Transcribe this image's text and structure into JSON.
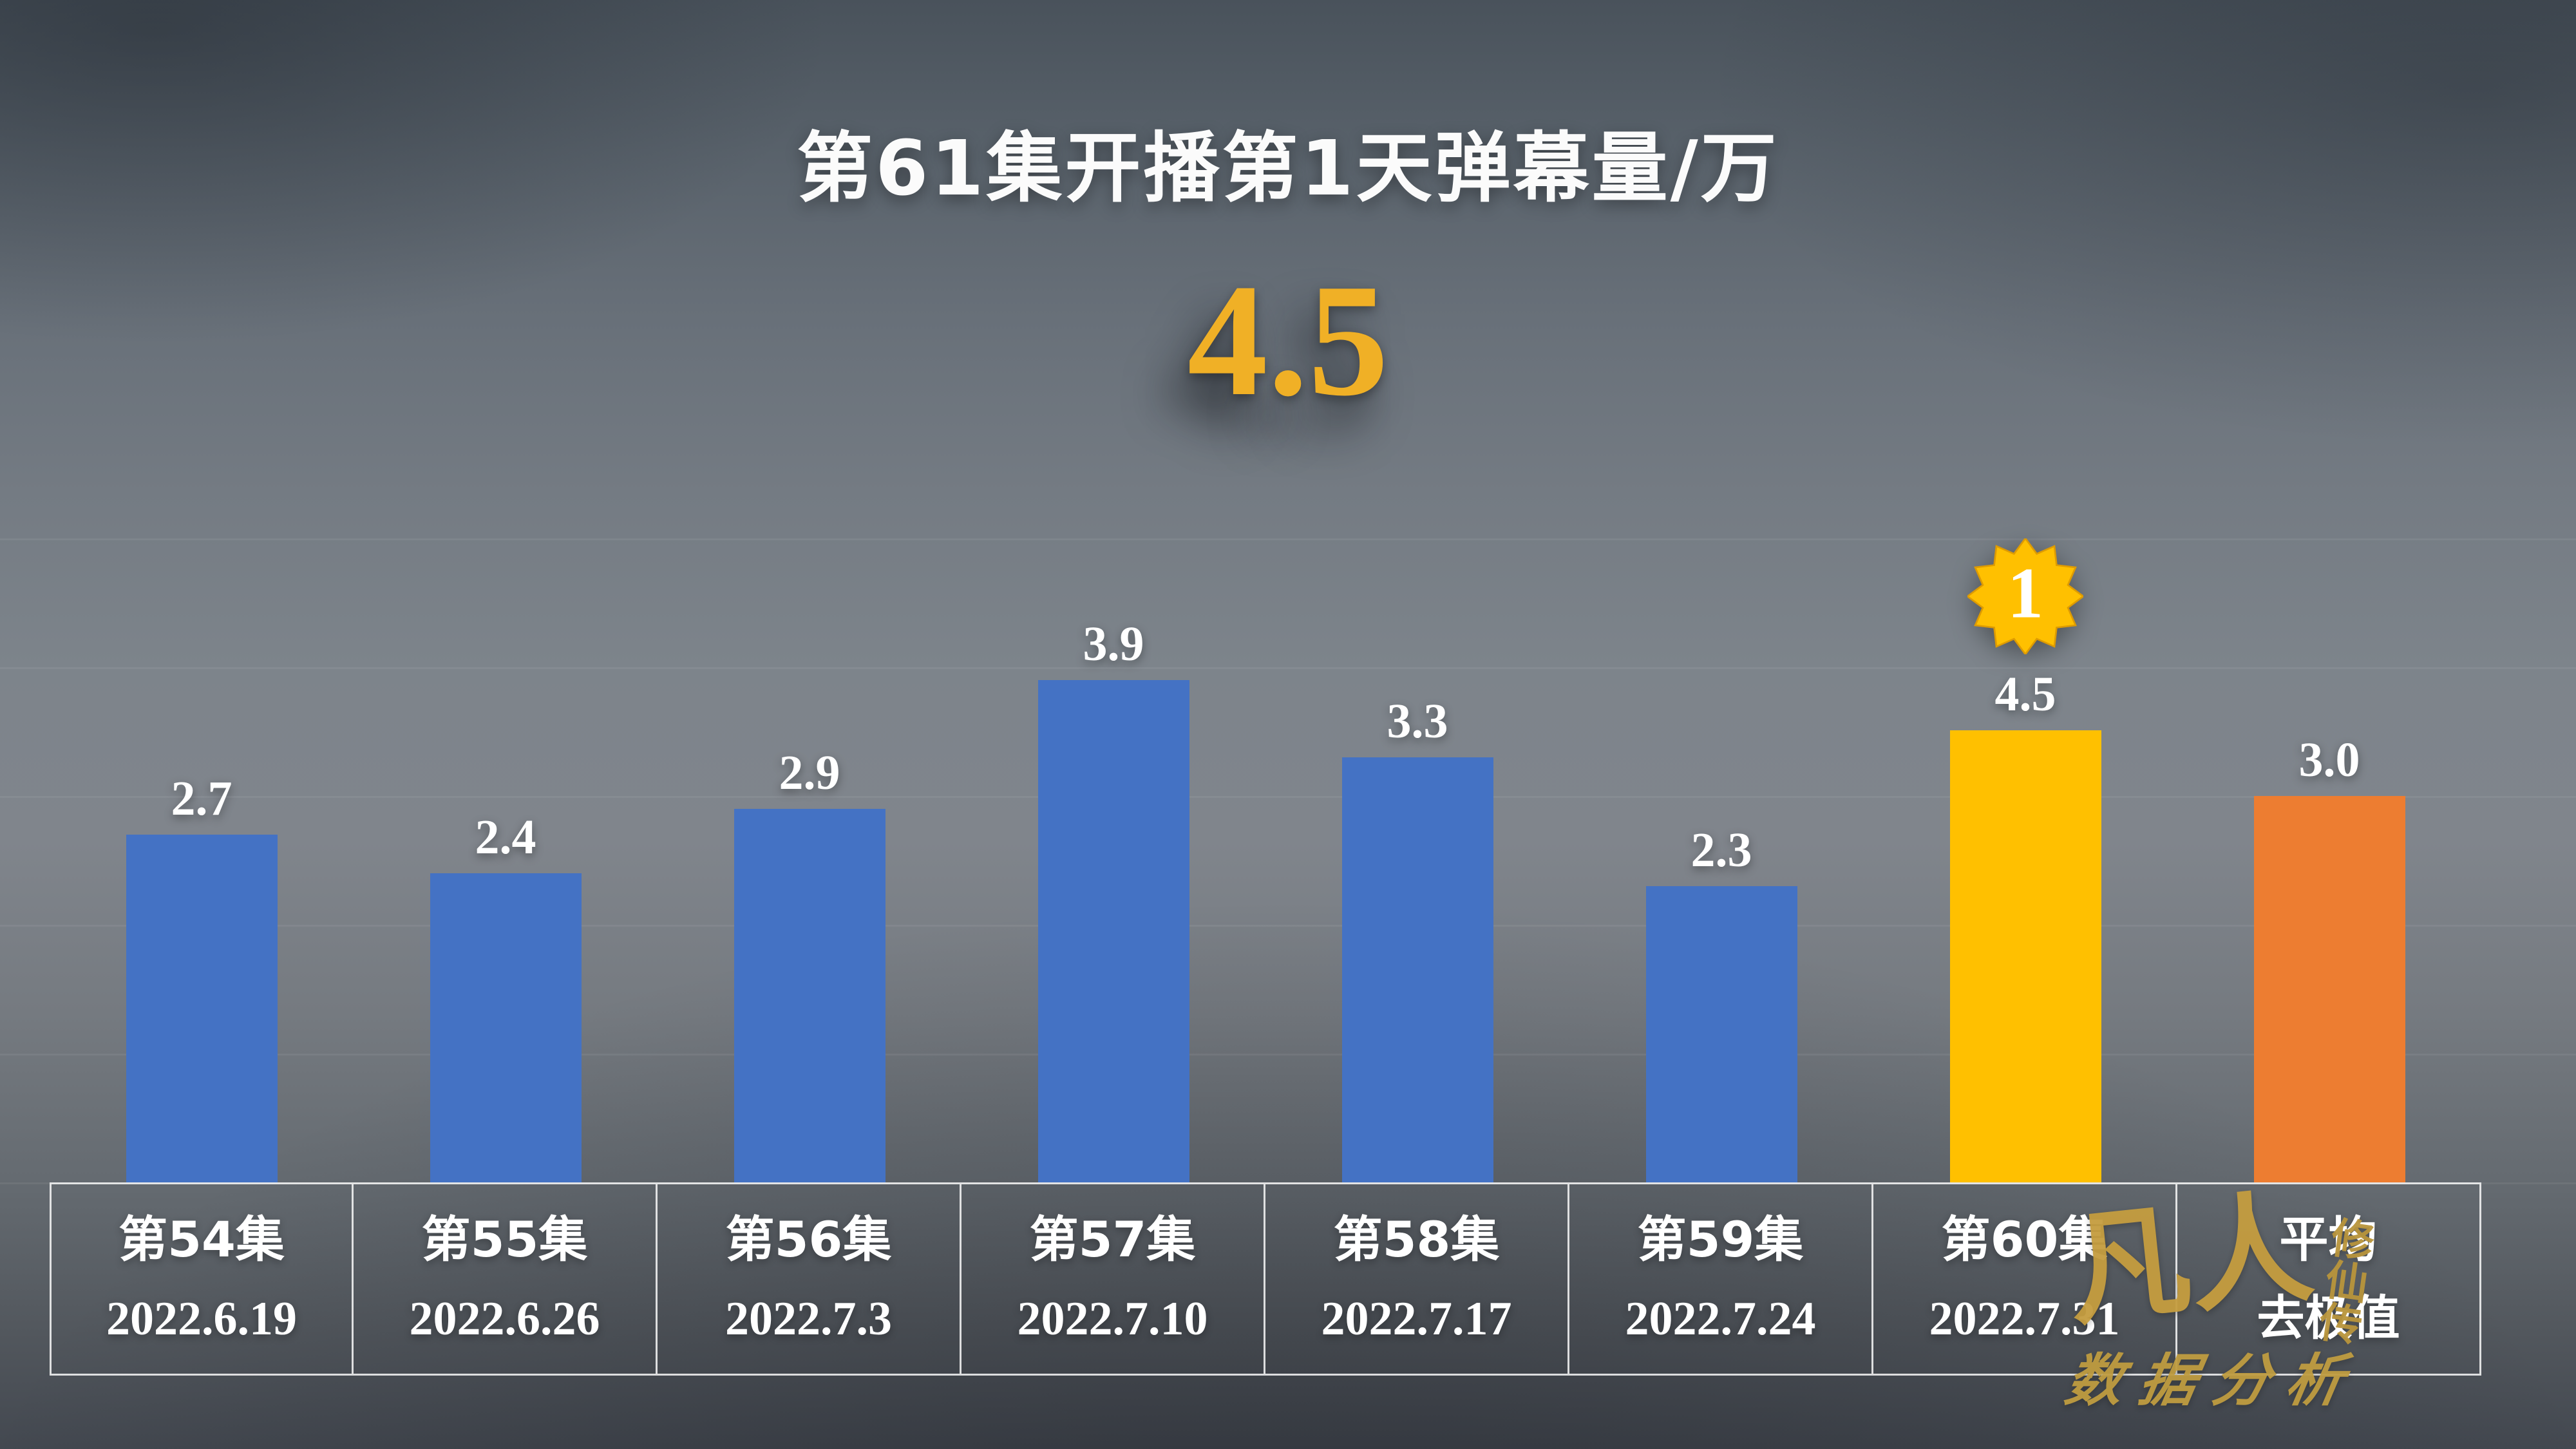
{
  "page": {
    "title": "第61集开播第1天弹幕量/万",
    "headline_value": "4.5"
  },
  "chart_data": {
    "type": "bar",
    "title": "第61集开播第1天弹幕量/万",
    "headline_value": "4.5",
    "categories": [
      "第54集",
      "第55集",
      "第56集",
      "第57集",
      "第58集",
      "第59集",
      "第60集",
      "平均"
    ],
    "dates": [
      "2022.6.19",
      "2022.6.26",
      "2022.7.3",
      "2022.7.10",
      "2022.7.17",
      "2022.7.24",
      "2022.7.31",
      "去极值"
    ],
    "values": [
      2.7,
      2.4,
      2.9,
      3.9,
      3.3,
      2.3,
      4.5,
      3.0
    ],
    "value_labels": [
      "2.7",
      "2.4",
      "2.9",
      "3.9",
      "3.3",
      "2.3",
      "4.5",
      "3.0"
    ],
    "bar_colors": [
      "#4472c4",
      "#4472c4",
      "#4472c4",
      "#4472c4",
      "#4472c4",
      "#4472c4",
      "#ffc000",
      "#ed7d31"
    ],
    "rank_badge": {
      "label": "1",
      "column_index": 6
    },
    "xlabel": "",
    "ylabel": "",
    "ylim": [
      0,
      5
    ],
    "grid": "faint horizontal",
    "legend": "none"
  },
  "watermark": {
    "brand_main": "凡人",
    "brand_sub": "修仙传",
    "caption": "数据分析"
  },
  "colors": {
    "bar_blue": "#4472c4",
    "bar_gold": "#ffc000",
    "bar_orange": "#ed7d31",
    "headline_gold": "#f0b026",
    "badge_gold": "#ffc000",
    "text_white": "#ffffff",
    "watermark_gold": "#c59d3f"
  }
}
